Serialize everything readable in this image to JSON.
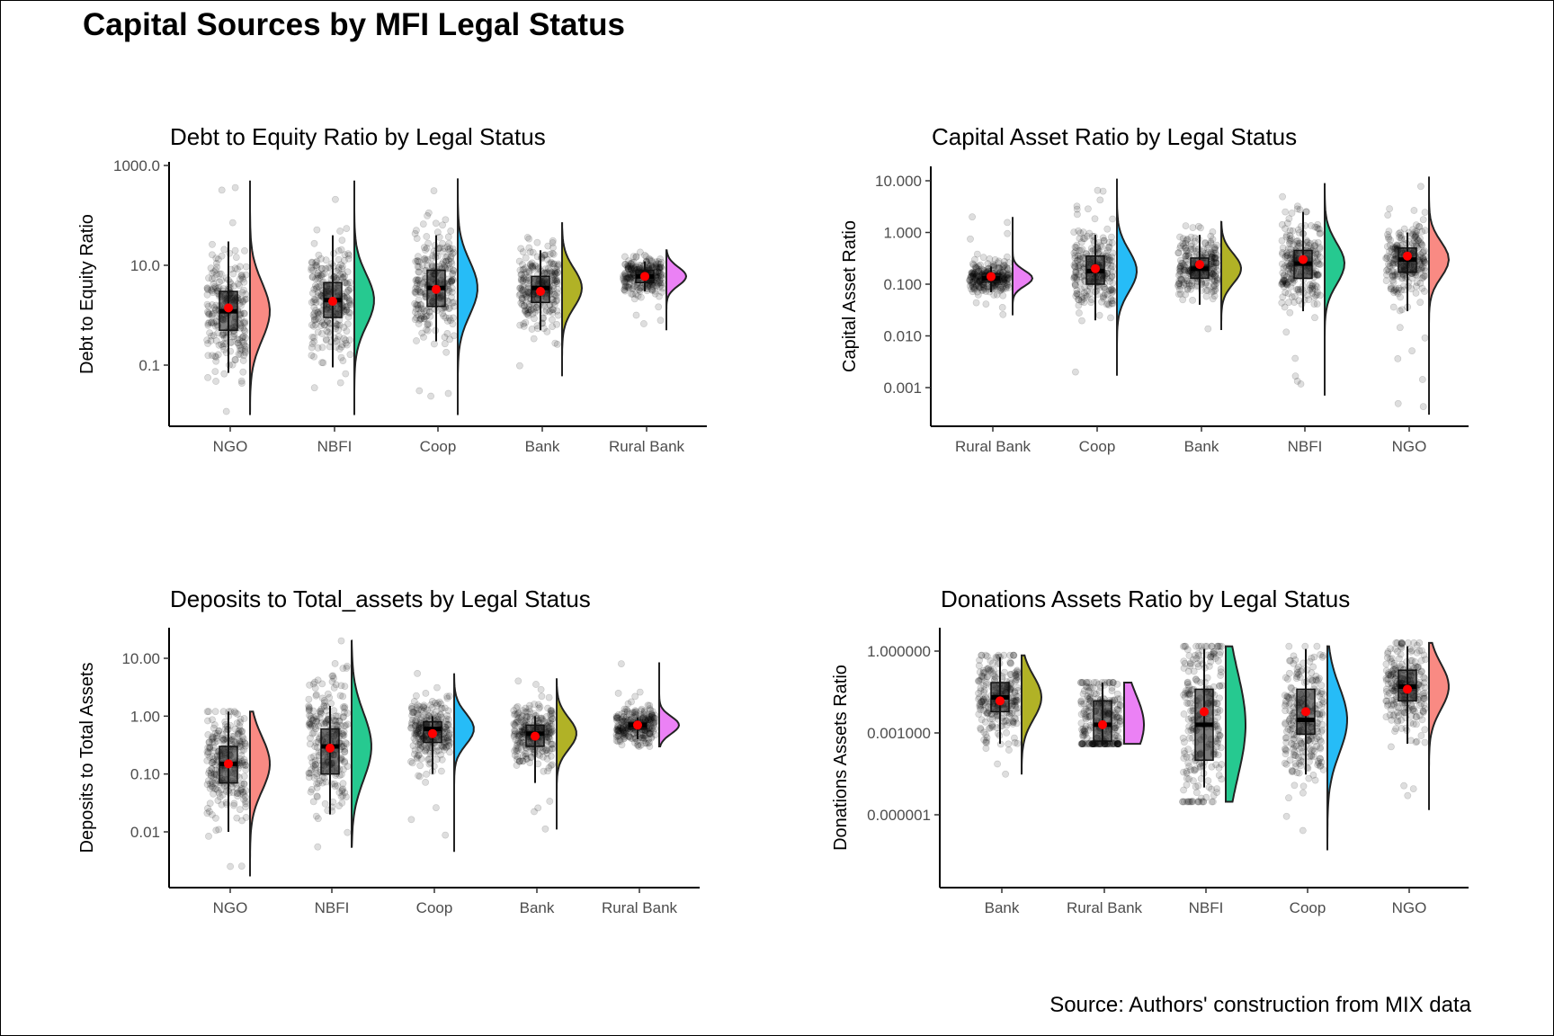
{
  "title": "Capital Sources by MFI Legal Status",
  "caption": "Source: Authors' construction from MIX data",
  "colors": {
    "NGO": "#F8766D",
    "NBFI": "#00BF7D",
    "Coop": "#00B0F6",
    "Bank": "#A3A500",
    "Rural Bank": "#E76BF3",
    "points": "#000000",
    "mean": "#FF0000"
  },
  "chart_data": [
    {
      "type": "raincloud",
      "scale": "log10",
      "title": "Debt to Equity Ratio by Legal Status",
      "xlabel": "",
      "ylabel": "Debt to Equity Ratio",
      "yticks": [
        0.1,
        10.0,
        1000.0
      ],
      "ytick_labels": [
        "0.1",
        "10.0",
        "1000.0"
      ],
      "ylim": [
        0.006,
        1500
      ],
      "categories": [
        "NGO",
        "NBFI",
        "Coop",
        "Bank",
        "Rural Bank"
      ],
      "series": [
        {
          "category": "NGO",
          "median": 1.2,
          "q1": 0.5,
          "q3": 3.0,
          "whisker_low": 0.07,
          "whisker_high": 30,
          "mean": 1.4,
          "min": 0.01,
          "max": 500
        },
        {
          "category": "NBFI",
          "median": 2.0,
          "q1": 0.9,
          "q3": 4.5,
          "whisker_low": 0.09,
          "whisker_high": 40,
          "mean": 1.9,
          "min": 0.01,
          "max": 500
        },
        {
          "category": "Coop",
          "median": 3.5,
          "q1": 1.5,
          "q3": 8.0,
          "whisker_low": 0.3,
          "whisker_high": 40,
          "mean": 3.3,
          "min": 0.01,
          "max": 550
        },
        {
          "category": "Bank",
          "median": 3.5,
          "q1": 1.8,
          "q3": 6.0,
          "whisker_low": 0.5,
          "whisker_high": 20,
          "mean": 3.0,
          "min": 0.06,
          "max": 70
        },
        {
          "category": "Rural Bank",
          "median": 6.0,
          "q1": 4.5,
          "q3": 8.0,
          "whisker_low": 3.0,
          "whisker_high": 12,
          "mean": 6.0,
          "min": 0.5,
          "max": 20
        }
      ]
    },
    {
      "type": "raincloud",
      "scale": "log10",
      "title": "Capital Asset Ratio by Legal Status",
      "xlabel": "",
      "ylabel": "Capital Asset Ratio",
      "yticks": [
        0.001,
        0.01,
        0.1,
        1.0,
        10.0
      ],
      "ytick_labels": [
        "0.001",
        "0.010",
        "0.100",
        "1.000",
        "10.000"
      ],
      "ylim": [
        0.00018,
        15
      ],
      "categories": [
        "Rural Bank",
        "Coop",
        "Bank",
        "NBFI",
        "NGO"
      ],
      "series": [
        {
          "category": "Rural Bank",
          "median": 0.13,
          "q1": 0.11,
          "q3": 0.16,
          "whisker_low": 0.07,
          "whisker_high": 0.22,
          "mean": 0.14,
          "min": 0.025,
          "max": 2.0
        },
        {
          "category": "Coop",
          "median": 0.18,
          "q1": 0.1,
          "q3": 0.35,
          "whisker_low": 0.02,
          "whisker_high": 0.9,
          "mean": 0.2,
          "min": 0.0017,
          "max": 11.0
        },
        {
          "category": "Bank",
          "median": 0.2,
          "q1": 0.13,
          "q3": 0.32,
          "whisker_low": 0.04,
          "whisker_high": 0.9,
          "mean": 0.24,
          "min": 0.013,
          "max": 1.6
        },
        {
          "category": "NBFI",
          "median": 0.25,
          "q1": 0.13,
          "q3": 0.45,
          "whisker_low": 0.03,
          "whisker_high": 2.5,
          "mean": 0.3,
          "min": 0.0007,
          "max": 9.0
        },
        {
          "category": "NGO",
          "median": 0.3,
          "q1": 0.17,
          "q3": 0.5,
          "whisker_low": 0.03,
          "whisker_high": 1.0,
          "mean": 0.35,
          "min": 0.0003,
          "max": 12.0
        }
      ]
    },
    {
      "type": "raincloud",
      "scale": "log10",
      "title": "Deposits to Total_assets by Legal Status",
      "xlabel": "",
      "ylabel": "Deposits to Total Assets",
      "yticks": [
        0.01,
        0.1,
        1.0,
        10.0
      ],
      "ytick_labels": [
        "0.01",
        "0.10",
        "1.00",
        "10.00"
      ],
      "ylim": [
        0.0011,
        30
      ],
      "categories": [
        "NGO",
        "NBFI",
        "Coop",
        "Bank",
        "Rural Bank"
      ],
      "series": [
        {
          "category": "NGO",
          "median": 0.15,
          "q1": 0.07,
          "q3": 0.3,
          "whisker_low": 0.01,
          "whisker_high": 1.2,
          "mean": 0.15,
          "min": 0.0017,
          "max": 1.2
        },
        {
          "category": "NBFI",
          "median": 0.3,
          "q1": 0.1,
          "q3": 0.6,
          "whisker_low": 0.02,
          "whisker_high": 1.5,
          "mean": 0.28,
          "min": 0.0055,
          "max": 20.0
        },
        {
          "category": "Coop",
          "median": 0.6,
          "q1": 0.35,
          "q3": 0.8,
          "whisker_low": 0.1,
          "whisker_high": 1.0,
          "mean": 0.5,
          "min": 0.0045,
          "max": 5.5
        },
        {
          "category": "Bank",
          "median": 0.5,
          "q1": 0.3,
          "q3": 0.7,
          "whisker_low": 0.07,
          "whisker_high": 1.0,
          "mean": 0.45,
          "min": 0.011,
          "max": 4.5
        },
        {
          "category": "Rural Bank",
          "median": 0.7,
          "q1": 0.6,
          "q3": 0.78,
          "whisker_low": 0.4,
          "whisker_high": 0.95,
          "mean": 0.7,
          "min": 0.3,
          "max": 8.5
        }
      ]
    },
    {
      "type": "raincloud",
      "scale": "log10",
      "title": "Donations Assets Ratio by Legal Status",
      "xlabel": "",
      "ylabel": "Donations Assets Ratio",
      "yticks": [
        1e-06,
        0.001,
        1.0
      ],
      "ytick_labels": [
        "0.000001",
        "0.001000",
        "1.000000"
      ],
      "ylim": [
        3e-08,
        3.5
      ],
      "categories": [
        "Bank",
        "Rural Bank",
        "NBFI",
        "Coop",
        "NGO"
      ],
      "series": [
        {
          "category": "Bank",
          "median": 0.02,
          "q1": 0.006,
          "q3": 0.07,
          "whisker_low": 0.0004,
          "whisker_high": 0.6,
          "mean": 0.015,
          "min": 3e-05,
          "max": 0.7
        },
        {
          "category": "Rural Bank",
          "median": 0.002,
          "q1": 0.0005,
          "q3": 0.015,
          "whisker_low": 0.0004,
          "whisker_high": 0.07,
          "mean": 0.002,
          "min": 0.0004,
          "max": 0.07
        },
        {
          "category": "NBFI",
          "median": 0.002,
          "q1": 0.0001,
          "q3": 0.04,
          "whisker_low": 1e-05,
          "whisker_high": 1.2,
          "mean": 0.006,
          "min": 3e-06,
          "max": 1.5
        },
        {
          "category": "Coop",
          "median": 0.003,
          "q1": 0.0009,
          "q3": 0.04,
          "whisker_low": 3e-05,
          "whisker_high": 1.2,
          "mean": 0.006,
          "min": 5e-08,
          "max": 1.5
        },
        {
          "category": "NGO",
          "median": 0.05,
          "q1": 0.015,
          "q3": 0.2,
          "whisker_low": 0.0004,
          "whisker_high": 1.5,
          "mean": 0.04,
          "min": 1.5e-06,
          "max": 2.0
        }
      ]
    }
  ]
}
